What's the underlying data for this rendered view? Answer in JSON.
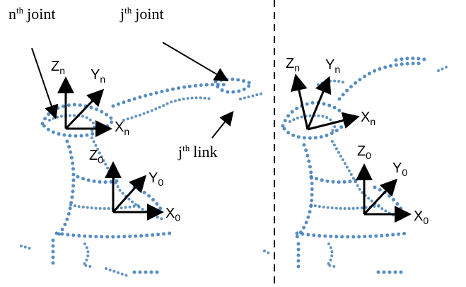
{
  "annotations": {
    "nth_joint": {
      "base": "n",
      "sup": "th",
      "text": "joint"
    },
    "jth_joint": {
      "base": "j",
      "sup": "th",
      "text": "joint"
    },
    "jth_link": {
      "base": "j",
      "sup": "th",
      "text": "link"
    }
  },
  "left_frames": [
    {
      "z": {
        "base": "Z",
        "sub": "n"
      },
      "y": {
        "base": "Y",
        "sub": "n"
      },
      "x": {
        "base": "X",
        "sub": "n"
      }
    },
    {
      "z": {
        "base": "Z",
        "sub": "0"
      },
      "y": {
        "base": "Y",
        "sub": "0"
      },
      "x": {
        "base": "X",
        "sub": "0"
      }
    }
  ],
  "right_frames": [
    {
      "z": {
        "base": "Z",
        "sub": "n"
      },
      "y": {
        "base": "Y",
        "sub": "n"
      },
      "x": {
        "base": "X",
        "sub": "n"
      }
    },
    {
      "z": {
        "base": "Z",
        "sub": "0"
      },
      "y": {
        "base": "Y",
        "sub": "0"
      },
      "x": {
        "base": "X",
        "sub": "0"
      }
    }
  ]
}
